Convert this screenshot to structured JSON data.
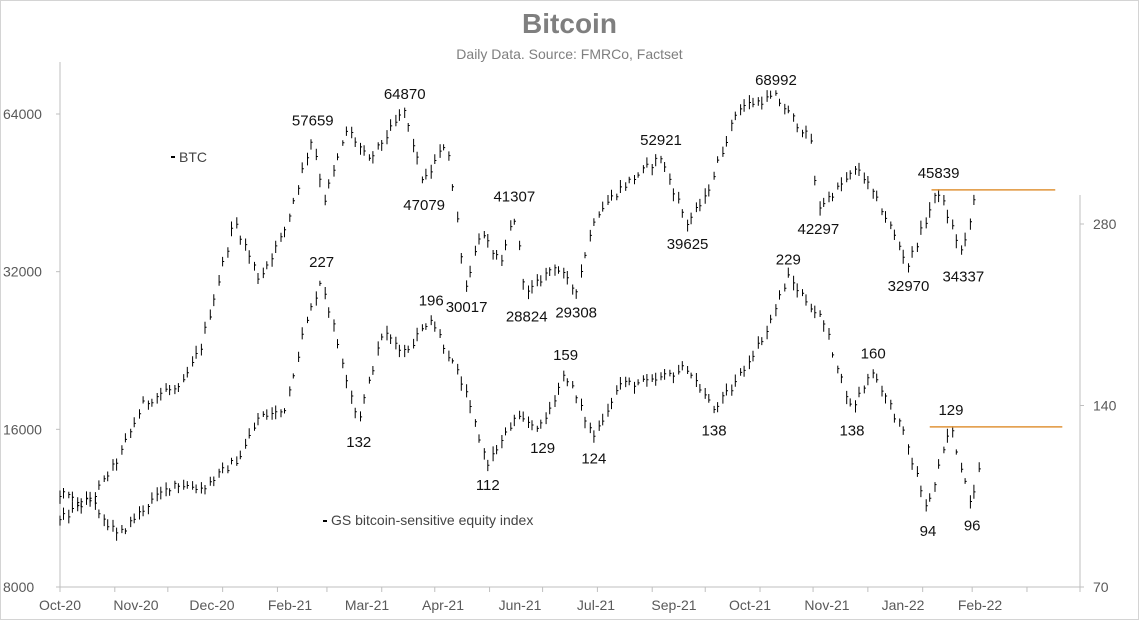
{
  "chart_data": {
    "type": "line",
    "title": "Bitcoin",
    "subtitle": "Daily Data. Source: FMRCo, Factset",
    "x_tick_labels": [
      "Oct-20",
      "Nov-20",
      "Dec-20",
      "Feb-21",
      "Mar-21",
      "Apr-21",
      "Jun-21",
      "Jul-21",
      "Sep-21",
      "Oct-21",
      "Nov-21",
      "Jan-22",
      "Feb-22"
    ],
    "left_axis": {
      "scale": "log",
      "ticks": [
        8000,
        16000,
        32000,
        64000
      ],
      "tick_labels": [
        "8000",
        "16000",
        "32000",
        "64000"
      ],
      "range": [
        8000,
        80000
      ]
    },
    "right_axis": {
      "scale": "log",
      "ticks": [
        70,
        140,
        280
      ],
      "tick_labels": [
        "70",
        "140",
        "280"
      ],
      "range": [
        70,
        380
      ]
    },
    "grid": false,
    "series": [
      {
        "name": "BTC",
        "axis": "left",
        "color": "#000000",
        "points": [
          [
            "2020-10-01",
            10700
          ],
          [
            "2020-10-21",
            12000
          ],
          [
            "2020-11-03",
            14000
          ],
          [
            "2020-11-17",
            17800
          ],
          [
            "2020-11-30",
            19000
          ],
          [
            "2020-12-08",
            19000
          ],
          [
            "2020-12-20",
            23000
          ],
          [
            "2021-01-08",
            40000
          ],
          [
            "2021-01-22",
            31000
          ],
          [
            "2021-02-05",
            38000
          ],
          [
            "2021-02-21",
            57659
          ],
          [
            "2021-02-28",
            44000
          ],
          [
            "2021-03-13",
            60000
          ],
          [
            "2021-03-25",
            52000
          ],
          [
            "2021-04-14",
            64870
          ],
          [
            "2021-04-25",
            47079
          ],
          [
            "2021-05-08",
            57000
          ],
          [
            "2021-05-19",
            30017
          ],
          [
            "2021-05-27",
            38000
          ],
          [
            "2021-06-08",
            33000
          ],
          [
            "2021-06-15",
            41307
          ],
          [
            "2021-06-22",
            28824
          ],
          [
            "2021-07-08",
            33000
          ],
          [
            "2021-07-20",
            29308
          ],
          [
            "2021-07-31",
            41000
          ],
          [
            "2021-08-14",
            46000
          ],
          [
            "2021-09-06",
            52921
          ],
          [
            "2021-09-21",
            39625
          ],
          [
            "2021-10-01",
            44000
          ],
          [
            "2021-10-20",
            66000
          ],
          [
            "2021-11-10",
            68992
          ],
          [
            "2021-11-30",
            57000
          ],
          [
            "2021-12-04",
            42297
          ],
          [
            "2021-12-27",
            50500
          ],
          [
            "2022-01-11",
            41000
          ],
          [
            "2022-01-24",
            32970
          ],
          [
            "2022-02-10",
            45839
          ],
          [
            "2022-02-24",
            34337
          ],
          [
            "2022-03-03",
            44500
          ]
        ]
      },
      {
        "name": "GS bitcoin-sensitive equity index",
        "axis": "right",
        "color": "#000000",
        "points": [
          [
            "2020-10-01",
            100
          ],
          [
            "2020-10-20",
            96
          ],
          [
            "2020-11-03",
            85
          ],
          [
            "2020-11-20",
            96
          ],
          [
            "2020-12-05",
            104
          ],
          [
            "2020-12-21",
            102
          ],
          [
            "2021-01-11",
            115
          ],
          [
            "2021-01-22",
            134
          ],
          [
            "2021-02-05",
            137
          ],
          [
            "2021-02-16",
            185
          ],
          [
            "2021-02-26",
            227
          ],
          [
            "2021-03-08",
            175
          ],
          [
            "2021-03-19",
            132
          ],
          [
            "2021-04-02",
            185
          ],
          [
            "2021-04-15",
            172
          ],
          [
            "2021-04-29",
            196
          ],
          [
            "2021-05-17",
            152
          ],
          [
            "2021-05-31",
            112
          ],
          [
            "2021-06-16",
            133
          ],
          [
            "2021-07-01",
            129
          ],
          [
            "2021-07-14",
            159
          ],
          [
            "2021-07-30",
            124
          ],
          [
            "2021-08-14",
            152
          ],
          [
            "2021-09-01",
            153
          ],
          [
            "2021-09-21",
            162
          ],
          [
            "2021-10-06",
            138
          ],
          [
            "2021-10-16",
            149
          ],
          [
            "2021-11-05",
            186
          ],
          [
            "2021-11-17",
            229
          ],
          [
            "2021-12-07",
            193
          ],
          [
            "2021-12-23",
            138
          ],
          [
            "2022-01-04",
            160
          ],
          [
            "2022-01-21",
            127
          ],
          [
            "2022-02-04",
            94
          ],
          [
            "2022-02-17",
            129
          ],
          [
            "2022-03-01",
            96
          ],
          [
            "2022-03-07",
            120
          ]
        ]
      }
    ],
    "annotations": [
      {
        "text": "57659",
        "x": "2021-02-21",
        "y": 57659,
        "axis": "left",
        "pos": "above"
      },
      {
        "text": "64870",
        "x": "2021-04-14",
        "y": 64870,
        "axis": "left",
        "pos": "above"
      },
      {
        "text": "47079",
        "x": "2021-04-25",
        "y": 47079,
        "axis": "left",
        "pos": "below"
      },
      {
        "text": "30017",
        "x": "2021-05-19",
        "y": 30017,
        "axis": "left",
        "pos": "below"
      },
      {
        "text": "41307",
        "x": "2021-06-15",
        "y": 41307,
        "axis": "left",
        "pos": "above"
      },
      {
        "text": "28824",
        "x": "2021-06-22",
        "y": 28824,
        "axis": "left",
        "pos": "below"
      },
      {
        "text": "29308",
        "x": "2021-07-20",
        "y": 29308,
        "axis": "left",
        "pos": "below"
      },
      {
        "text": "52921",
        "x": "2021-09-06",
        "y": 52921,
        "axis": "left",
        "pos": "above"
      },
      {
        "text": "39625",
        "x": "2021-09-21",
        "y": 39625,
        "axis": "left",
        "pos": "below"
      },
      {
        "text": "68992",
        "x": "2021-11-10",
        "y": 68992,
        "axis": "left",
        "pos": "above"
      },
      {
        "text": "42297",
        "x": "2021-12-04",
        "y": 42297,
        "axis": "left",
        "pos": "below"
      },
      {
        "text": "45839",
        "x": "2022-02-10",
        "y": 45839,
        "axis": "left",
        "pos": "above"
      },
      {
        "text": "32970",
        "x": "2022-01-24",
        "y": 32970,
        "axis": "left",
        "pos": "below"
      },
      {
        "text": "34337",
        "x": "2022-02-24",
        "y": 34337,
        "axis": "left",
        "pos": "below"
      },
      {
        "text": "227",
        "x": "2021-02-26",
        "y": 227,
        "axis": "right",
        "pos": "above"
      },
      {
        "text": "132",
        "x": "2021-03-19",
        "y": 132,
        "axis": "right",
        "pos": "below"
      },
      {
        "text": "196",
        "x": "2021-04-29",
        "y": 196,
        "axis": "right",
        "pos": "above"
      },
      {
        "text": "112",
        "x": "2021-05-31",
        "y": 112,
        "axis": "right",
        "pos": "below"
      },
      {
        "text": "129",
        "x": "2021-07-01",
        "y": 129,
        "axis": "right",
        "pos": "below"
      },
      {
        "text": "159",
        "x": "2021-07-14",
        "y": 159,
        "axis": "right",
        "pos": "above"
      },
      {
        "text": "124",
        "x": "2021-07-30",
        "y": 124,
        "axis": "right",
        "pos": "below"
      },
      {
        "text": "138",
        "x": "2021-10-06",
        "y": 138,
        "axis": "right",
        "pos": "below"
      },
      {
        "text": "229",
        "x": "2021-11-17",
        "y": 229,
        "axis": "right",
        "pos": "above"
      },
      {
        "text": "160",
        "x": "2022-01-04",
        "y": 160,
        "axis": "right",
        "pos": "above"
      },
      {
        "text": "138",
        "x": "2021-12-23",
        "y": 138,
        "axis": "right",
        "pos": "below"
      },
      {
        "text": "129",
        "x": "2022-02-17",
        "y": 129,
        "axis": "right",
        "pos": "above"
      },
      {
        "text": "94",
        "x": "2022-02-04",
        "y": 94,
        "axis": "right",
        "pos": "below"
      },
      {
        "text": "96",
        "x": "2022-03-01",
        "y": 96,
        "axis": "right",
        "pos": "below"
      }
    ],
    "reference_lines": [
      {
        "axis": "left",
        "y": 45839,
        "x_start": "2022-02-06",
        "x_end": "2022-04-17",
        "color": "#e0953a"
      },
      {
        "axis": "right",
        "y": 129,
        "x_start": "2022-02-05",
        "x_end": "2022-04-21",
        "color": "#e0953a"
      }
    ],
    "legend": {
      "position": "inline"
    }
  }
}
